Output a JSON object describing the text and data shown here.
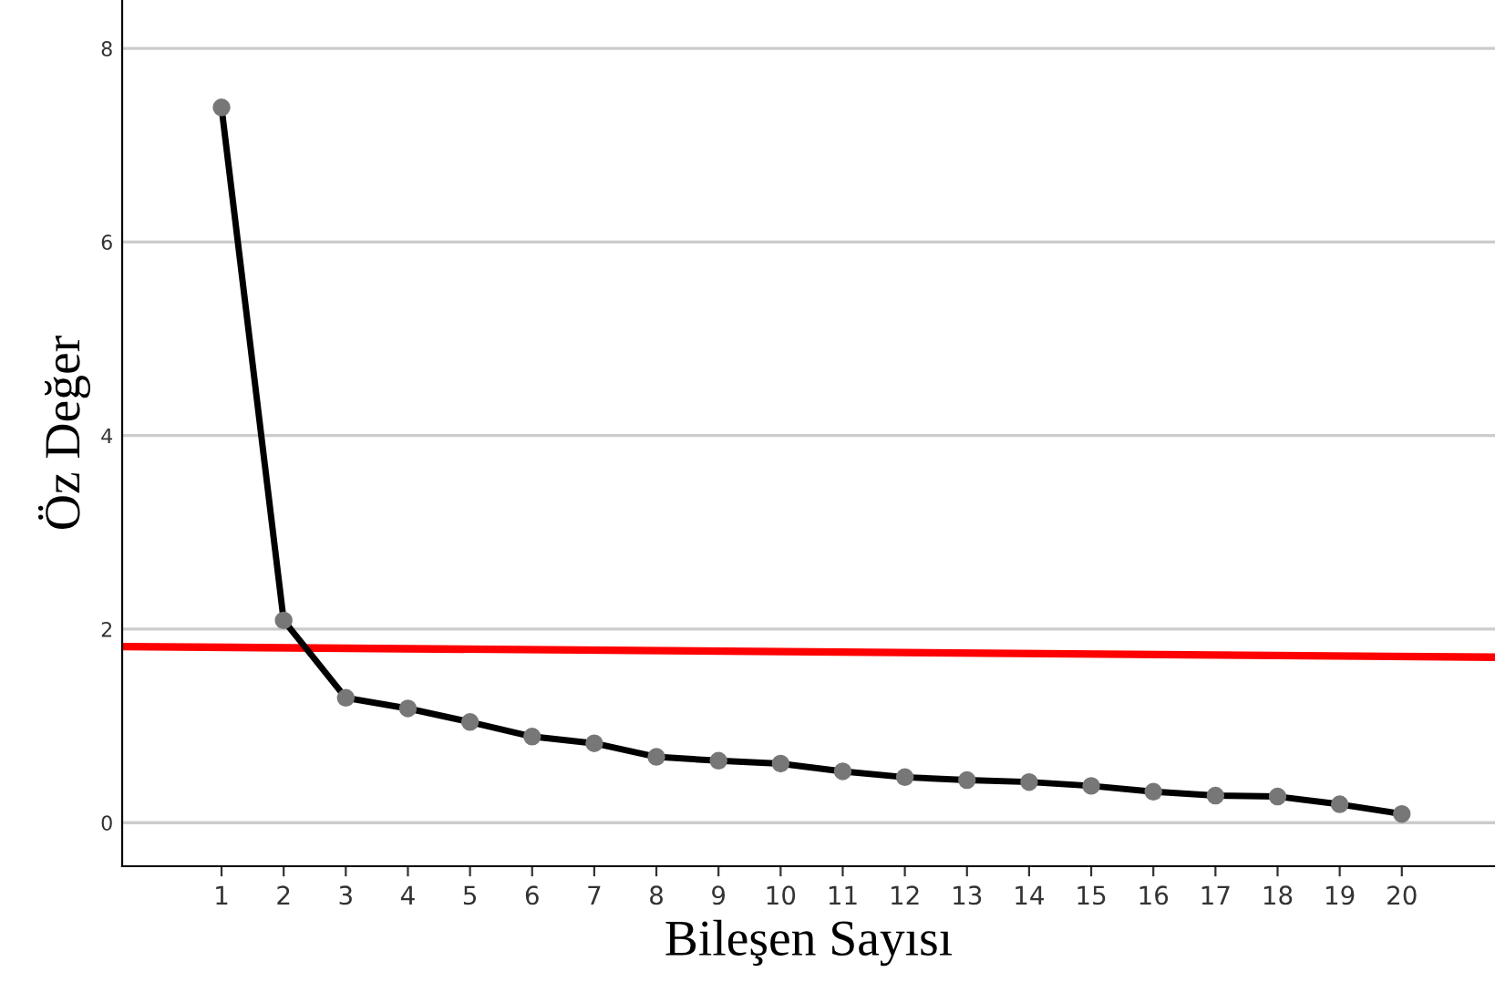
{
  "chart_data": {
    "type": "line",
    "xlabel": "Bileşen Sayısı",
    "ylabel": "Öz Değer",
    "x": [
      1,
      2,
      3,
      4,
      5,
      6,
      7,
      8,
      9,
      10,
      11,
      12,
      13,
      14,
      15,
      16,
      17,
      18,
      19,
      20
    ],
    "series": [
      {
        "color": "#000000",
        "marker": "circle",
        "values": [
          7.39,
          2.09,
          1.29,
          1.18,
          1.04,
          0.89,
          0.82,
          0.68,
          0.64,
          0.61,
          0.53,
          0.47,
          0.44,
          0.42,
          0.38,
          0.32,
          0.28,
          0.27,
          0.19,
          0.09
        ]
      },
      {
        "color": "#ff0000",
        "marker": "none",
        "x": [
          -0.6,
          21.5
        ],
        "values": [
          1.82,
          1.71
        ]
      }
    ],
    "xlim": [
      -0.6,
      21.5
    ],
    "xticks": [
      1,
      2,
      3,
      4,
      5,
      6,
      7,
      8,
      9,
      10,
      11,
      12,
      13,
      14,
      15,
      16,
      17,
      18,
      19,
      20
    ],
    "ylim": [
      -0.45,
      8.5
    ],
    "yticks": [
      0,
      2,
      4,
      6,
      8
    ],
    "grid": "y",
    "legend": false
  }
}
